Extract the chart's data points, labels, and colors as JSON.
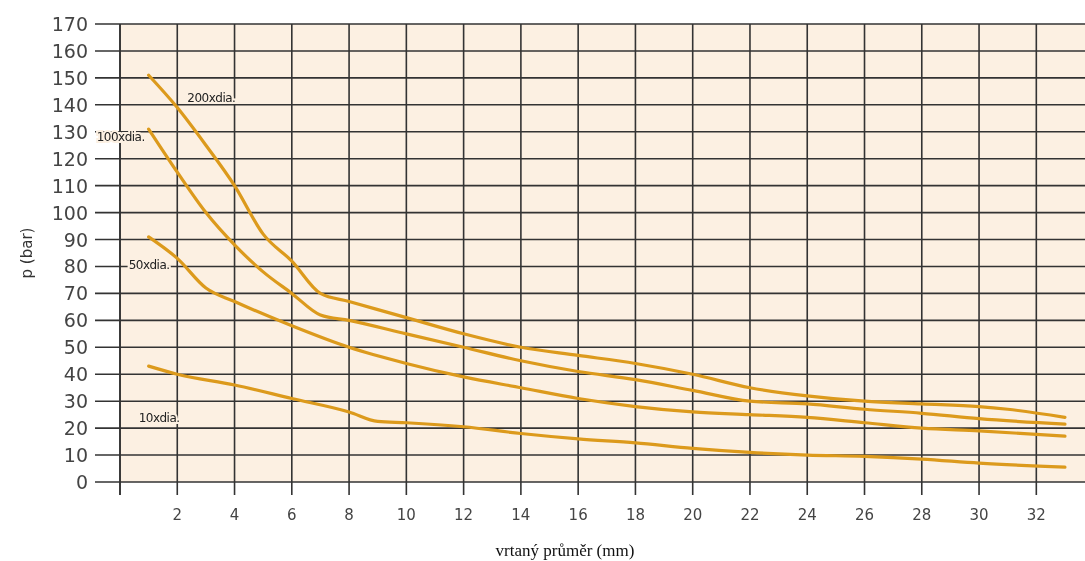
{
  "chart_data": {
    "type": "line",
    "xlabel": "vrtaný průměr (mm)",
    "ylabel": "p (bar)",
    "xlim": [
      0,
      33.7
    ],
    "ylim": [
      0,
      170
    ],
    "xticks": [
      {
        "value": 0,
        "label": null
      },
      2,
      4,
      6,
      8,
      10,
      12,
      14,
      16,
      18,
      20,
      22,
      24,
      26,
      28,
      30,
      32
    ],
    "yticks": [
      0,
      10,
      20,
      30,
      40,
      50,
      60,
      70,
      80,
      90,
      100,
      110,
      120,
      130,
      140,
      150,
      160,
      170
    ],
    "grid": true,
    "marker": "none",
    "line_style": "solid",
    "series": [
      {
        "name": "200xdia.",
        "color": "#dc9a1c",
        "x": [
          1,
          2,
          3,
          4,
          5,
          6,
          7,
          8,
          10,
          12,
          14,
          16,
          18,
          20,
          22,
          24,
          26,
          28,
          30,
          31,
          33
        ],
        "values": [
          151,
          139,
          125,
          110,
          92,
          82,
          70,
          67,
          61,
          55,
          50,
          47,
          44,
          40,
          35,
          32,
          30,
          29,
          28,
          27,
          24
        ]
      },
      {
        "name": "100xdia.",
        "color": "#dc9a1c",
        "x": [
          1,
          2,
          3,
          4,
          5,
          6,
          7,
          8,
          10,
          12,
          14,
          16,
          18,
          20,
          22,
          24,
          26,
          28,
          30,
          33
        ],
        "values": [
          131,
          115,
          100,
          88,
          78,
          70,
          62,
          60,
          55,
          50,
          45,
          41,
          38,
          34,
          30,
          29,
          27,
          25.5,
          23.5,
          21.5
        ]
      },
      {
        "name": "50xdia.",
        "color": "#dc9a1c",
        "x": [
          1,
          2,
          3,
          4,
          6,
          8,
          10,
          12,
          14,
          16,
          18,
          20,
          22,
          24,
          26,
          28,
          30,
          33
        ],
        "values": [
          91,
          83,
          72,
          67,
          58,
          50,
          44,
          39,
          35,
          31,
          28,
          26,
          25,
          24,
          22,
          20,
          19,
          17
        ]
      },
      {
        "name": "10xdia.",
        "color": "#dc9a1c",
        "x": [
          1,
          2,
          4,
          6,
          8,
          9,
          10,
          12,
          14,
          16,
          18,
          20,
          22,
          24,
          26,
          28,
          30,
          33
        ],
        "values": [
          43,
          40,
          36,
          31,
          26,
          22.5,
          22,
          20.5,
          18,
          16,
          14.5,
          12.5,
          11,
          10,
          9.5,
          8.5,
          7,
          5.5
        ]
      }
    ]
  }
}
